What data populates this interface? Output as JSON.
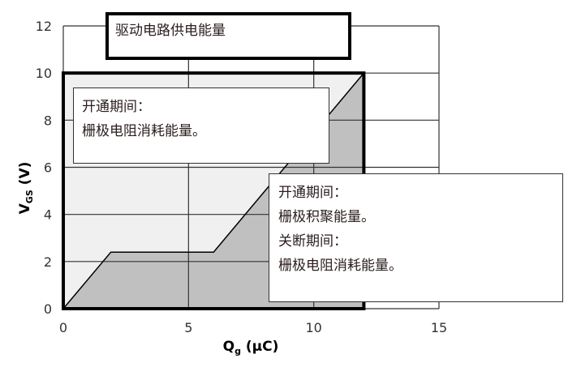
{
  "chart_data": {
    "type": "area",
    "xlabel": "Q",
    "xlabel_sub": "g",
    "xlabel_unit": " (µC)",
    "ylabel": "V",
    "ylabel_sub": "GS",
    "ylabel_unit": " (V)",
    "xlim": [
      0,
      15
    ],
    "ylim": [
      0,
      12
    ],
    "xticks": [
      "0",
      "5",
      "10",
      "15"
    ],
    "yticks": [
      "0",
      "2",
      "4",
      "6",
      "8",
      "10",
      "12"
    ],
    "grid": true,
    "curve": {
      "x": [
        0,
        1.9,
        6,
        12
      ],
      "y": [
        0,
        2.4,
        2.4,
        10
      ]
    },
    "highlight_box": {
      "x": [
        0,
        12
      ],
      "y": [
        0,
        10
      ]
    },
    "colors": {
      "under_curve": "#c0c0c0",
      "above_curve": "#f0f0f0",
      "grid": "#333333"
    }
  },
  "annotations": {
    "top": [
      "驱动电路供电能量"
    ],
    "left": [
      "开通期间：",
      "栅极电阻消耗能量。"
    ],
    "right": [
      "开通期间：",
      "栅极积聚能量。",
      "关断期间：",
      "栅极电阻消耗能量。"
    ]
  }
}
